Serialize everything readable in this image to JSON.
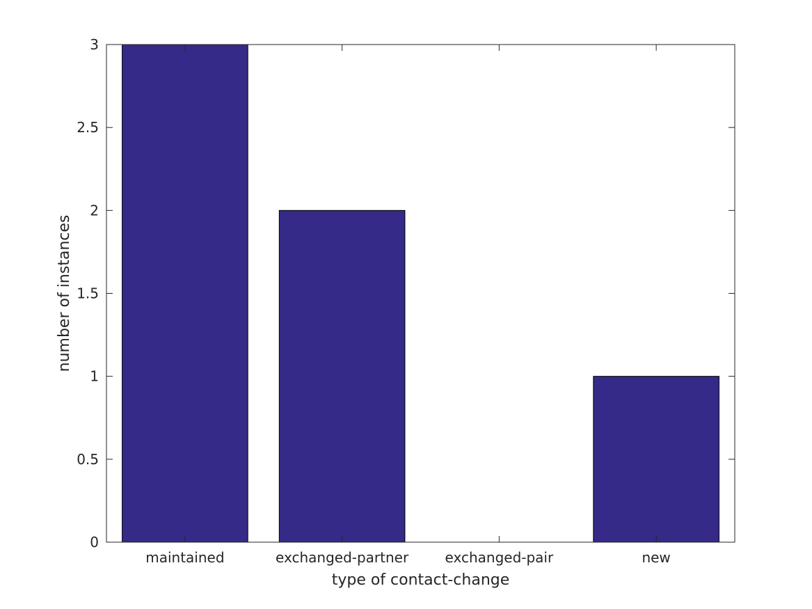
{
  "chart_data": {
    "type": "bar",
    "categories": [
      "maintained",
      "exchanged-partner",
      "exchanged-pair",
      "new"
    ],
    "values": [
      3,
      2,
      0,
      1
    ],
    "xlabel": "type of contact-change",
    "ylabel": "number of instances",
    "ylim": [
      0,
      3
    ],
    "yticks": [
      "0",
      "0.5",
      "1",
      "1.5",
      "2",
      "2.5",
      "3"
    ],
    "grid": false,
    "bar_color": "#352a87",
    "edge_color": "#000000"
  }
}
